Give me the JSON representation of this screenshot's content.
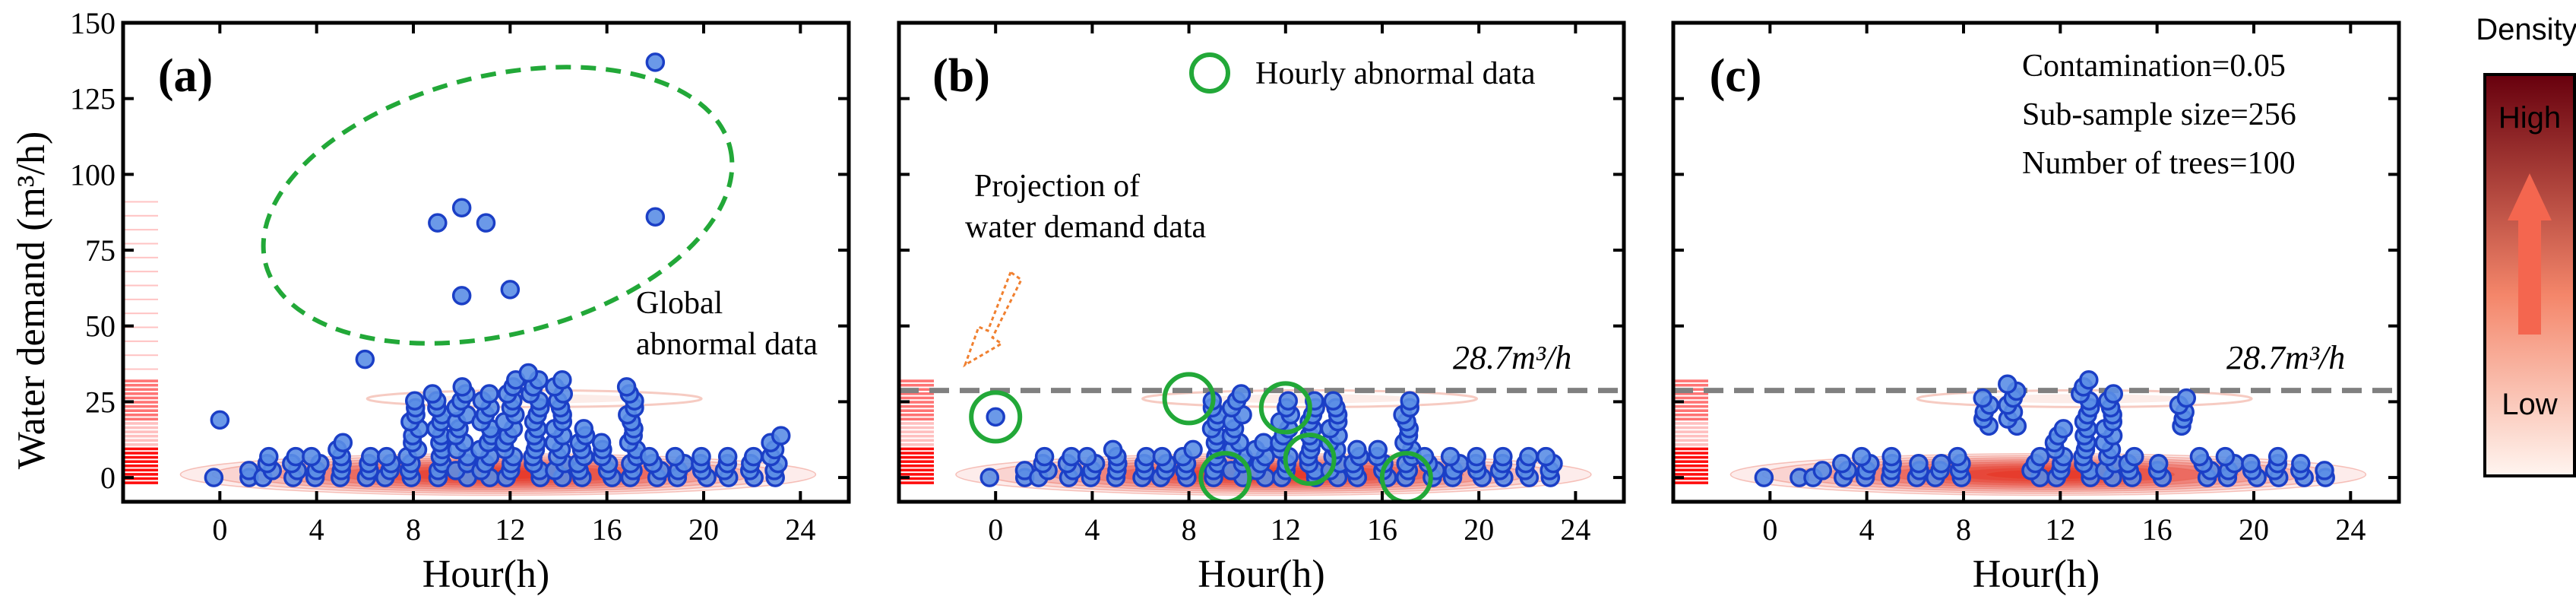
{
  "figure": {
    "ylabel": "Water demand (m³/h)",
    "colorbar": {
      "title": "Density",
      "high": "High",
      "low": "Low"
    }
  },
  "chart_data": [
    {
      "type": "scatter",
      "panel_label": "(a)",
      "xlabel": "Hour(h)",
      "ylabel": "Water demand (m³/h)",
      "xlim": [
        -4,
        26
      ],
      "ylim": [
        -8,
        150
      ],
      "xticks": [
        0,
        4,
        8,
        12,
        16,
        20,
        24
      ],
      "yticks": [
        0,
        25,
        50,
        75,
        100,
        125,
        150
      ],
      "annotations": {
        "global_abnormal": "Global\nabnormal data"
      },
      "outliers": [
        [
          18,
          137
        ],
        [
          10,
          89
        ],
        [
          9,
          84
        ],
        [
          11,
          84
        ],
        [
          18,
          86
        ],
        [
          12,
          62
        ],
        [
          10,
          60
        ],
        [
          6,
          39
        ],
        [
          0,
          19
        ]
      ],
      "hour_ranges": [
        [
          0,
          0,
          2
        ],
        [
          1,
          0,
          3
        ],
        [
          2,
          0,
          7
        ],
        [
          3,
          0,
          8
        ],
        [
          4,
          0,
          9
        ],
        [
          5,
          0,
          12
        ],
        [
          6,
          0,
          8
        ],
        [
          7,
          0,
          8
        ],
        [
          8,
          0,
          27
        ],
        [
          9,
          0,
          28
        ],
        [
          10,
          0,
          31
        ],
        [
          11,
          0,
          28
        ],
        [
          12,
          0,
          33
        ],
        [
          13,
          0,
          36
        ],
        [
          14,
          0,
          33
        ],
        [
          15,
          0,
          18
        ],
        [
          16,
          0,
          13
        ],
        [
          17,
          0,
          30
        ],
        [
          18,
          0,
          9
        ],
        [
          19,
          0,
          9
        ],
        [
          20,
          0,
          9
        ],
        [
          21,
          0,
          9
        ],
        [
          22,
          0,
          8
        ],
        [
          23,
          0,
          14
        ]
      ]
    },
    {
      "type": "scatter",
      "panel_label": "(b)",
      "xlabel": "Hour(h)",
      "xlim": [
        -4,
        26
      ],
      "ylim": [
        -8,
        150
      ],
      "xticks": [
        0,
        4,
        8,
        12,
        16,
        20,
        24
      ],
      "threshold": 28.7,
      "threshold_label": "28.7m³/h",
      "legend": "Hourly abnormal data",
      "annotations": {
        "projection": "Projection of\nwater demand data"
      },
      "hourly_abnormal": [
        [
          0,
          20
        ],
        [
          8,
          26
        ],
        [
          9.5,
          0
        ],
        [
          12,
          23
        ],
        [
          13,
          6
        ],
        [
          17,
          0
        ]
      ],
      "hour_ranges": [
        [
          0,
          0,
          2
        ],
        [
          1,
          0,
          3
        ],
        [
          2,
          0,
          7
        ],
        [
          3,
          0,
          8
        ],
        [
          4,
          0,
          9
        ],
        [
          5,
          0,
          10
        ],
        [
          6,
          0,
          8
        ],
        [
          7,
          0,
          8
        ],
        [
          8,
          0,
          10
        ],
        [
          9,
          0,
          27
        ],
        [
          10,
          0,
          28
        ],
        [
          11,
          0,
          12
        ],
        [
          12,
          0,
          27
        ],
        [
          13,
          0,
          27
        ],
        [
          14,
          0,
          27
        ],
        [
          15,
          0,
          10
        ],
        [
          16,
          0,
          10
        ],
        [
          17,
          0,
          27
        ],
        [
          18,
          0,
          9
        ],
        [
          19,
          0,
          9
        ],
        [
          20,
          0,
          9
        ],
        [
          21,
          0,
          9
        ],
        [
          22,
          0,
          8
        ],
        [
          23,
          0,
          7
        ]
      ],
      "extra_points": [
        [
          0,
          20
        ]
      ]
    },
    {
      "type": "scatter",
      "panel_label": "(c)",
      "xlabel": "Hour(h)",
      "xlim": [
        -4,
        26
      ],
      "ylim": [
        -8,
        150
      ],
      "xticks": [
        0,
        4,
        8,
        12,
        16,
        20,
        24
      ],
      "threshold": 28.7,
      "threshold_label": "28.7m³/h",
      "params": [
        "Contamination=0.05",
        "Sub-sample size=256",
        "Number of trees=100"
      ],
      "hour_ranges": [
        [
          0,
          0,
          1
        ],
        [
          1,
          0,
          2
        ],
        [
          2,
          0,
          4
        ],
        [
          3,
          0,
          6
        ],
        [
          4,
          0,
          8
        ],
        [
          5,
          0,
          7
        ],
        [
          6,
          0,
          6
        ],
        [
          7,
          0,
          6
        ],
        [
          8,
          0,
          7
        ],
        [
          9,
          17,
          27
        ],
        [
          10,
          17,
          31
        ],
        [
          11,
          0,
          8
        ],
        [
          12,
          0,
          17
        ],
        [
          13,
          0,
          33
        ],
        [
          14,
          0,
          28
        ],
        [
          15,
          0,
          8
        ],
        [
          16,
          0,
          6
        ],
        [
          17,
          17,
          28
        ],
        [
          18,
          0,
          9
        ],
        [
          19,
          0,
          8
        ],
        [
          20,
          0,
          6
        ],
        [
          21,
          0,
          7
        ],
        [
          22,
          0,
          6
        ],
        [
          23,
          0,
          4
        ]
      ]
    }
  ]
}
